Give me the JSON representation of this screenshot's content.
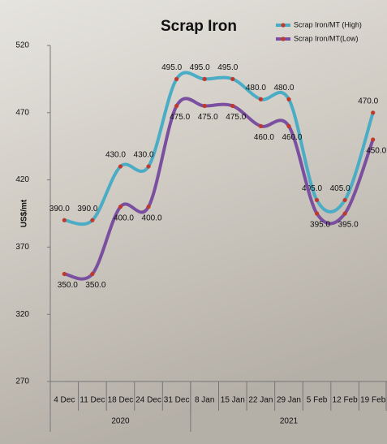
{
  "chart_data": {
    "type": "line",
    "title": "Scrap Iron",
    "y_label": "US$/mt",
    "categories": [
      "4 Dec",
      "11 Dec",
      "18 Dec",
      "24 Dec",
      "31 Dec",
      "8 Jan",
      "15 Jan",
      "22 Jan",
      "29 Jan",
      "5 Feb",
      "12 Feb",
      "19 Feb"
    ],
    "x_groups": [
      {
        "label": "2020",
        "start": "4 Dec",
        "end": "31 Dec"
      },
      {
        "label": "2021",
        "start": "8 Jan",
        "end": "19 Feb"
      }
    ],
    "series": [
      {
        "name": "Scrap Iron/MT (High)",
        "color": "#4bacc6",
        "marker_color": "#c0392b",
        "values": [
          390,
          390,
          430,
          430,
          495,
          495,
          495,
          480,
          480,
          405,
          405,
          470
        ],
        "value_labels": [
          "390.0",
          "390.0",
          "430.0",
          "430.0",
          "495.0",
          "495.0",
          "495.0",
          "480.0",
          "480.0",
          "405.0",
          "405.0",
          "470.0"
        ]
      },
      {
        "name": "Scrap Iron/MT(Low)",
        "color": "#7b4fa0",
        "marker_color": "#c0392b",
        "values": [
          350,
          350,
          400,
          400,
          475,
          475,
          475,
          460,
          460,
          395,
          395,
          450
        ],
        "value_labels": [
          "350.0",
          "350.0",
          "400.0",
          "400.0",
          "475.0",
          "475.0",
          "475.0",
          "460.0",
          "460.0",
          "395.0",
          "395.0",
          "450.0"
        ]
      }
    ],
    "ylim": [
      270,
      520
    ],
    "yticks": [
      270,
      320,
      370,
      420,
      470,
      520
    ],
    "grid": false
  }
}
